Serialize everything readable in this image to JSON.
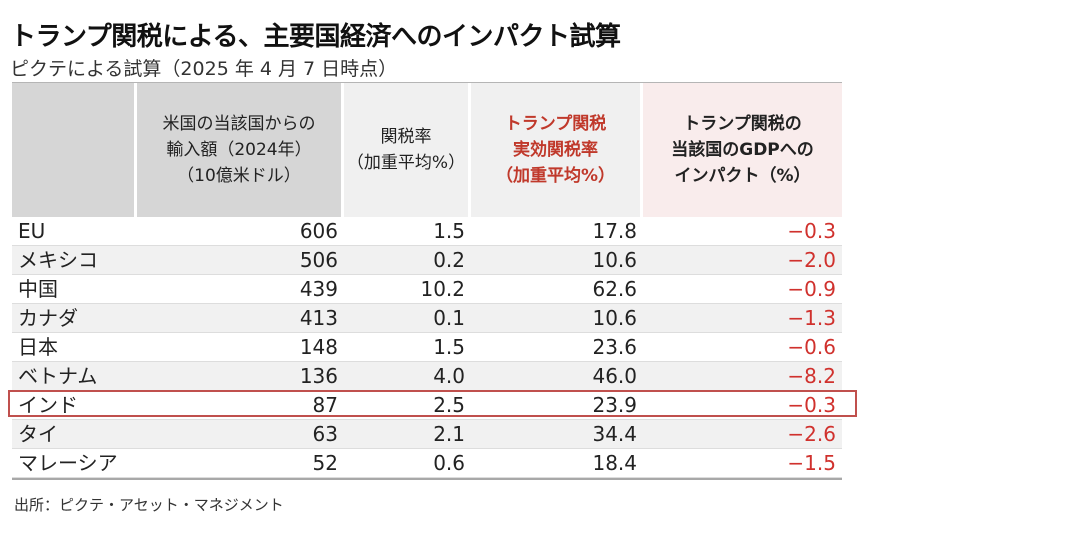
{
  "title": "トランプ関税による、主要国経済へのインパクト試算",
  "subtitle": "ピクテによる試算（2025 年 4 月 7 日時点）",
  "headers": [
    {
      "lines": [
        ""
      ]
    },
    {
      "lines": [
        "米国の当該国からの",
        "輸入額（2024年）",
        "（10億米ドル）"
      ]
    },
    {
      "lines": [
        "関税率",
        "（加重平均%）"
      ]
    },
    {
      "lines": [
        "トランプ関税",
        "実効関税率",
        "（加重平均%）"
      ]
    },
    {
      "lines": [
        "トランプ関税の",
        "当該国のGDPへの",
        "インパクト（%）"
      ]
    }
  ],
  "rows": [
    {
      "country": "EU",
      "imports": "606",
      "tariff": "1.5",
      "effective": "17.8",
      "impact": "−0.3"
    },
    {
      "country": "メキシコ",
      "imports": "506",
      "tariff": "0.2",
      "effective": "10.6",
      "impact": "−2.0"
    },
    {
      "country": "中国",
      "imports": "439",
      "tariff": "10.2",
      "effective": "62.6",
      "impact": "−0.9"
    },
    {
      "country": "カナダ",
      "imports": "413",
      "tariff": "0.1",
      "effective": "10.6",
      "impact": "−1.3"
    },
    {
      "country": "日本",
      "imports": "148",
      "tariff": "1.5",
      "effective": "23.6",
      "impact": "−0.6"
    },
    {
      "country": "ベトナム",
      "imports": "136",
      "tariff": "4.0",
      "effective": "46.0",
      "impact": "−8.2"
    },
    {
      "country": "インド",
      "imports": "87",
      "tariff": "2.5",
      "effective": "23.9",
      "impact": "−0.3"
    },
    {
      "country": "タイ",
      "imports": "63",
      "tariff": "2.1",
      "effective": "34.4",
      "impact": "−2.6"
    },
    {
      "country": "マレーシア",
      "imports": "52",
      "tariff": "0.6",
      "effective": "18.4",
      "impact": "−1.5"
    }
  ],
  "highlighted_country": "インド",
  "source": "出所：ピクテ・アセット・マネジメント",
  "colors": {
    "negative_value": "#d0312d",
    "highlight_box": "#c0504d",
    "header_gray": "#d6d6d6",
    "header_pink": "#f9ecec"
  }
}
